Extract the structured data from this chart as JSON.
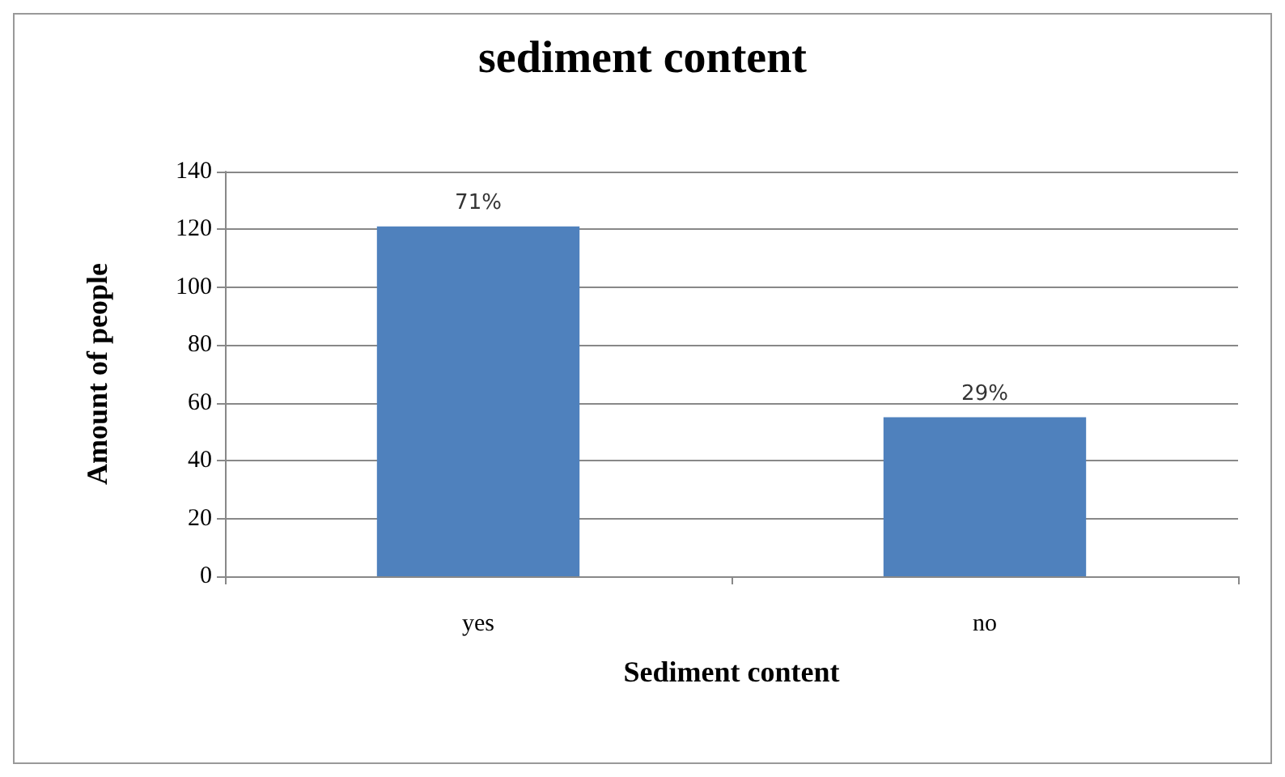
{
  "chart_data": {
    "type": "bar",
    "title": "sediment content",
    "xlabel": "Sediment content",
    "ylabel": "Amount of people",
    "categories": [
      "yes",
      "no"
    ],
    "values": [
      121,
      55
    ],
    "color": "#4f81bd",
    "annotations": [
      {
        "text": "71%",
        "x": "yes",
        "y": 121
      },
      {
        "text": "29%",
        "x": "no",
        "y": 55
      }
    ],
    "ylim": [
      0,
      140
    ],
    "yticks": [
      0,
      20,
      40,
      60,
      80,
      100,
      120,
      140
    ],
    "grid": "y"
  }
}
